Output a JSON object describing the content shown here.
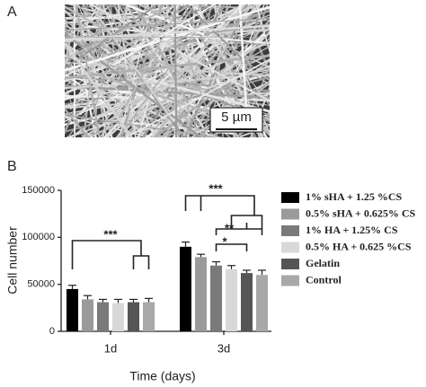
{
  "panel_labels": [
    "A",
    "B"
  ],
  "scale_bar": "5 µm",
  "chart_data": {
    "type": "bar",
    "ylabel": "Cell number",
    "xlabel": "Time (days)",
    "categories": [
      "1d",
      "3d"
    ],
    "ylim": [
      0,
      150000
    ],
    "yticks": [
      0,
      50000,
      100000,
      150000
    ],
    "series": [
      {
        "name": "1% sHA + 1.25 %CS",
        "color": "#000000",
        "values": [
          45000,
          90000
        ],
        "errors": [
          4000,
          5000
        ]
      },
      {
        "name": "0.5% sHA + 0.625% CS",
        "color": "#9a9a9a",
        "values": [
          34000,
          79000
        ],
        "errors": [
          4000,
          3000
        ]
      },
      {
        "name": "1% HA + 1.25% CS",
        "color": "#7a7a7a",
        "values": [
          31000,
          70000
        ],
        "errors": [
          3000,
          4000
        ]
      },
      {
        "name": "0.5% HA + 0.625 %CS",
        "color": "#d8d8d8",
        "values": [
          30000,
          66000
        ],
        "errors": [
          4000,
          4000
        ]
      },
      {
        "name": "Gelatin",
        "color": "#555555",
        "values": [
          31000,
          62000
        ],
        "errors": [
          3000,
          3000
        ]
      },
      {
        "name": "Control",
        "color": "#a8a8a8",
        "values": [
          31000,
          60000
        ],
        "errors": [
          4000,
          5000
        ]
      }
    ],
    "annotations": [
      "***",
      "***",
      "**",
      "*"
    ]
  }
}
